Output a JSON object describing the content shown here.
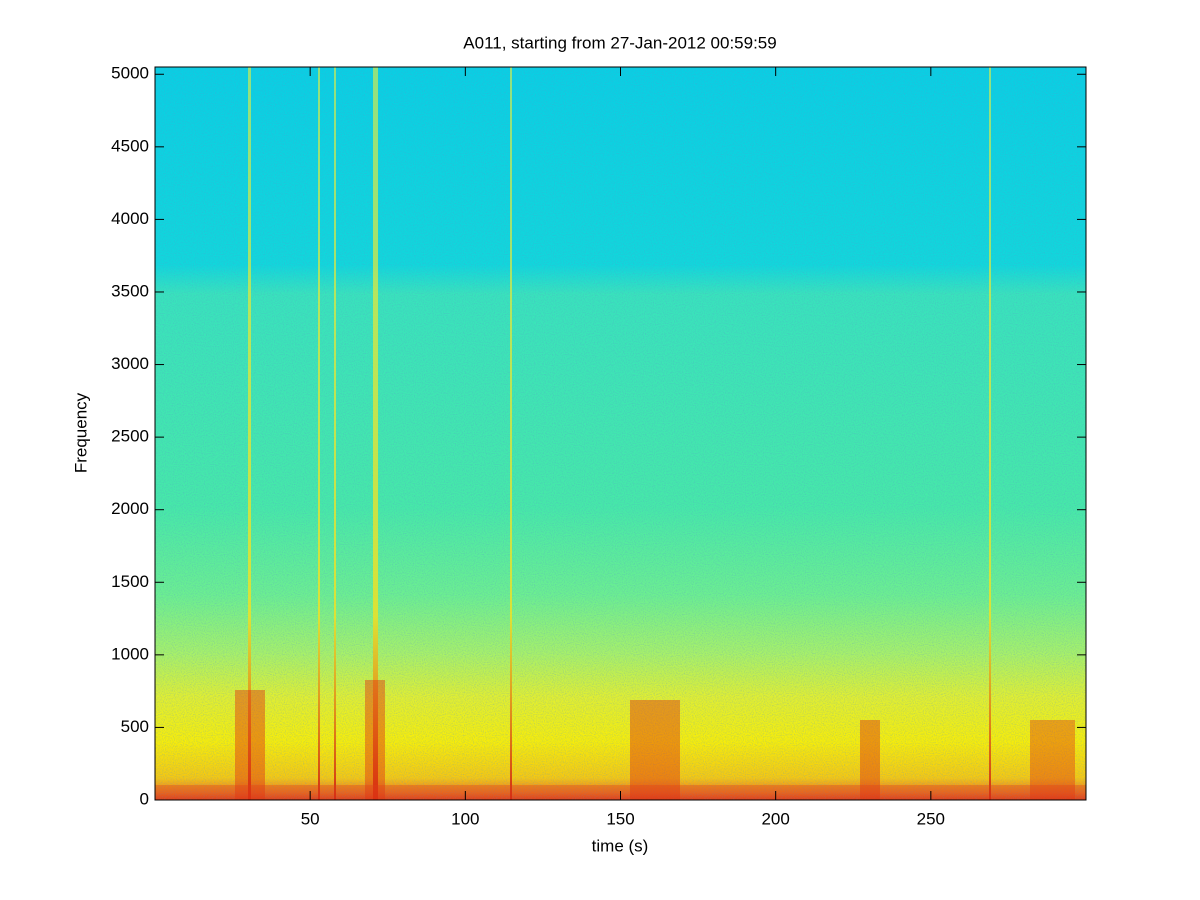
{
  "chart_data": {
    "type": "spectrogram",
    "title": "A011, starting from 27-Jan-2012 00:59:59",
    "x_label": "time (s)",
    "y_label": "Frequency",
    "colormap": "jet",
    "xlim": [
      0,
      300
    ],
    "xticks": [
      50,
      100,
      150,
      200,
      250
    ],
    "ylim": [
      0,
      5050
    ],
    "yticks": [
      0,
      500,
      1000,
      1500,
      2000,
      2500,
      3000,
      3500,
      4000,
      4500,
      5000
    ]
  }
}
